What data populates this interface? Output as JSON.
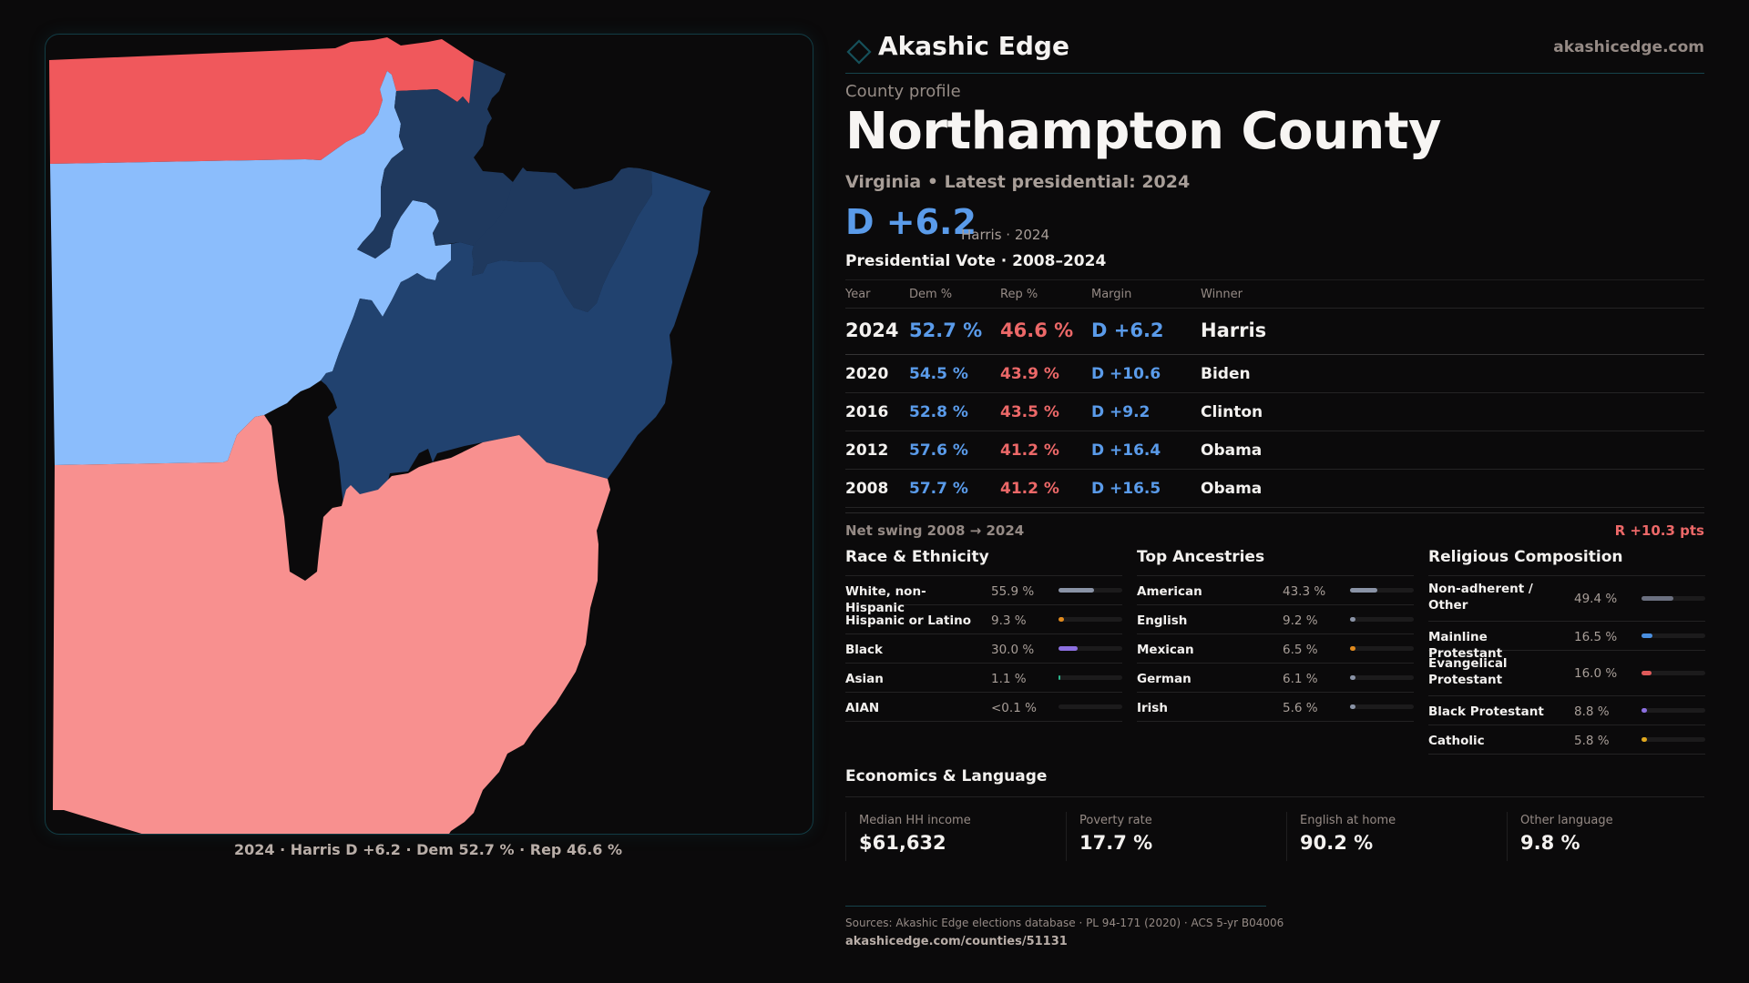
{
  "brand": {
    "name": "Akashic Edge",
    "url": "akashicedge.com",
    "logo_icon": "diamond-outline-icon",
    "accent_color": "#16434b"
  },
  "profile": {
    "eyebrow": "County profile",
    "county": "Northampton County",
    "subtitle": "Virginia • Latest presidential: 2024",
    "margin": "D +6.2",
    "margin_note": "Harris · 2024"
  },
  "map": {
    "caption": "2024 · Harris D +6.2 · Dem 52.7 % · Rep 46.6 %",
    "colors": {
      "strong_rep": "#f0585c",
      "lean_rep": "#f8908f",
      "lean_dem": "#8bbdfc",
      "strong_dem": "#21426f",
      "strong_dem_alt": "#1f395e"
    }
  },
  "presidential": {
    "title": "Presidential Vote · 2008–2024",
    "columns": [
      "Year",
      "Dem %",
      "Rep %",
      "Margin",
      "Winner"
    ],
    "rows": [
      {
        "year": "2024",
        "dem": "52.7 %",
        "rep": "46.6 %",
        "margin": "D +6.2",
        "winner": "Harris"
      },
      {
        "year": "2020",
        "dem": "54.5 %",
        "rep": "43.9 %",
        "margin": "D +10.6",
        "winner": "Biden"
      },
      {
        "year": "2016",
        "dem": "52.8 %",
        "rep": "43.5 %",
        "margin": "D +9.2",
        "winner": "Clinton"
      },
      {
        "year": "2012",
        "dem": "57.6 %",
        "rep": "41.2 %",
        "margin": "D +16.4",
        "winner": "Obama"
      },
      {
        "year": "2008",
        "dem": "57.7 %",
        "rep": "41.2 %",
        "margin": "D +16.5",
        "winner": "Obama"
      }
    ],
    "colors": {
      "dem": "#5a9bea",
      "rep": "#ec6868"
    },
    "swing_label": "Net swing 2008 → 2024",
    "swing_value": "R +10.3 pts"
  },
  "race": {
    "title": "Race & Ethnicity",
    "rows": [
      {
        "label": "White, non-Hispanic",
        "pct": "55.9 %",
        "value": 55.9,
        "color": "#8a93a6"
      },
      {
        "label": "Hispanic or Latino",
        "pct": "9.3 %",
        "value": 9.3,
        "color": "#e08a1e"
      },
      {
        "label": "Black",
        "pct": "30.0 %",
        "value": 30.0,
        "color": "#8c6fe0"
      },
      {
        "label": "Asian",
        "pct": "1.1 %",
        "value": 1.1,
        "color": "#2bb58c"
      },
      {
        "label": "AIAN",
        "pct": "<0.1 %",
        "value": 0.0,
        "color": "#8a93a6"
      }
    ]
  },
  "ancestry": {
    "title": "Top Ancestries",
    "rows": [
      {
        "label": "American",
        "pct": "43.3 %",
        "value": 43.3,
        "color": "#8a93a6"
      },
      {
        "label": "English",
        "pct": "9.2 %",
        "value": 9.2,
        "color": "#8a93a6"
      },
      {
        "label": "Mexican",
        "pct": "6.5 %",
        "value": 6.5,
        "color": "#e08a1e"
      },
      {
        "label": "German",
        "pct": "6.1 %",
        "value": 6.1,
        "color": "#8a93a6"
      },
      {
        "label": "Irish",
        "pct": "5.6 %",
        "value": 5.6,
        "color": "#8a93a6"
      }
    ]
  },
  "religion": {
    "title": "Religious Composition",
    "rows": [
      {
        "label": "Non-adherent / Other",
        "pct": "49.4 %",
        "value": 49.4,
        "color": "#6b7080",
        "tall": true
      },
      {
        "label": "Mainline Protestant",
        "pct": "16.5 %",
        "value": 16.5,
        "color": "#4a8fe0",
        "tall": false
      },
      {
        "label": "Evangelical Protestant",
        "pct": "16.0 %",
        "value": 16.0,
        "color": "#e05a5a",
        "tall": true
      },
      {
        "label": "Black Protestant",
        "pct": "8.8 %",
        "value": 8.8,
        "color": "#8c6fe0",
        "tall": false
      },
      {
        "label": "Catholic",
        "pct": "5.8 %",
        "value": 5.8,
        "color": "#e0a81e",
        "tall": false
      }
    ]
  },
  "economics": {
    "title": "Economics & Language",
    "cells": [
      {
        "label": "Median HH income",
        "value": "$61,632"
      },
      {
        "label": "Poverty rate",
        "value": "17.7 %"
      },
      {
        "label": "English at home",
        "value": "90.2 %"
      },
      {
        "label": "Other language",
        "value": "9.8 %"
      }
    ]
  },
  "footer": {
    "sources": "Sources: Akashic Edge elections database · PL 94-171 (2020) · ACS 5-yr B04006",
    "link": "akashicedge.com/counties/51131"
  }
}
